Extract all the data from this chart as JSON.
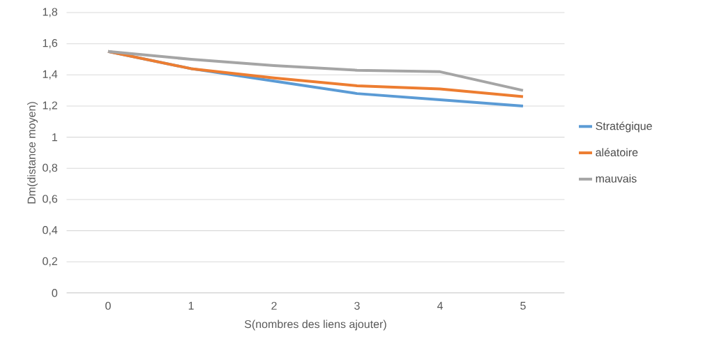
{
  "chart_data": {
    "type": "line",
    "xlabel": "S(nombres des liens ajouter)",
    "ylabel": "Dm(distance moyen)",
    "categories": [
      "0",
      "1",
      "2",
      "3",
      "4",
      "5"
    ],
    "series": [
      {
        "name": "Stratégique",
        "color": "#5b9bd5",
        "values": [
          1.55,
          1.44,
          1.36,
          1.28,
          1.24,
          1.2
        ]
      },
      {
        "name": "aléatoire",
        "color": "#ed7d31",
        "values": [
          1.55,
          1.44,
          1.38,
          1.33,
          1.31,
          1.26
        ]
      },
      {
        "name": "mauvais",
        "color": "#a5a5a5",
        "values": [
          1.55,
          1.5,
          1.46,
          1.43,
          1.42,
          1.3
        ]
      }
    ],
    "ylim": [
      0,
      1.8
    ],
    "yticks": [
      0,
      {
        "value": 0.2,
        "label": "0,2"
      },
      {
        "value": 0.4,
        "label": "0,4"
      },
      {
        "value": 0.6,
        "label": "0,6"
      },
      {
        "value": 0.8,
        "label": "0,8"
      },
      1,
      {
        "value": 1.2,
        "label": "1,2"
      },
      {
        "value": 1.4,
        "label": "1,4"
      },
      {
        "value": 1.6,
        "label": "1,6"
      },
      {
        "value": 1.8,
        "label": "1,8"
      }
    ],
    "grid": "y",
    "legend": "right",
    "marker": "none",
    "line_style": "solid"
  }
}
